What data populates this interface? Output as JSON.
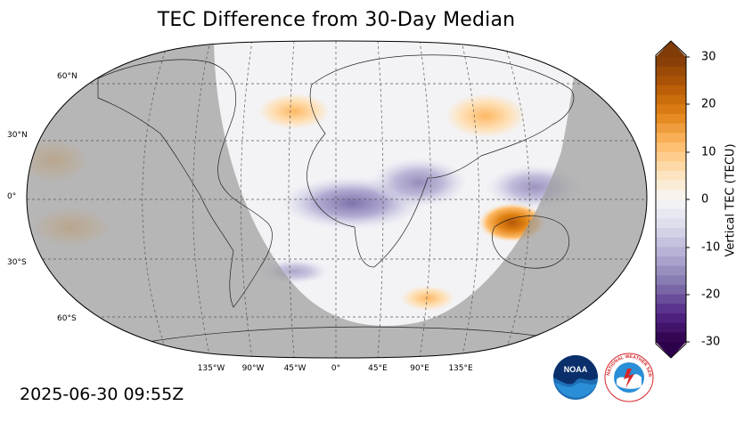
{
  "title": "TEC Difference from 30-Day Median",
  "timestamp": "2025-06-30 09:55Z",
  "map": {
    "projection": "Robinson",
    "lon_labels": [
      "135°W",
      "90°W",
      "45°W",
      "0°",
      "45°E",
      "90°E",
      "135°E"
    ],
    "lat_labels": [
      "60°N",
      "30°N",
      "0°",
      "30°S",
      "60°S"
    ],
    "night_shading_color": "#b3b3b3",
    "ocean_day_color": "#f2f2f5",
    "anomalies": [
      {
        "region": "Australia/Timor Sea",
        "tec_diff": 28
      },
      {
        "region": "West Africa / Atlantic equator",
        "tec_diff": -14
      },
      {
        "region": "Southeast Asia",
        "tec_diff": -8
      },
      {
        "region": "Central Pacific",
        "tec_diff": 10
      },
      {
        "region": "North Atlantic",
        "tec_diff": 6
      },
      {
        "region": "East Asia",
        "tec_diff": 7
      }
    ]
  },
  "colorbar": {
    "label": "Vertical TEC (TECU)",
    "ticks": [
      "30",
      "20",
      "10",
      "0",
      "-10",
      "-20",
      "-30"
    ],
    "range": [
      -30,
      30
    ],
    "colormap": "PuOr_r"
  },
  "logos": {
    "noaa": "NOAA",
    "nws": "NATIONAL WEATHER SERVICE"
  }
}
